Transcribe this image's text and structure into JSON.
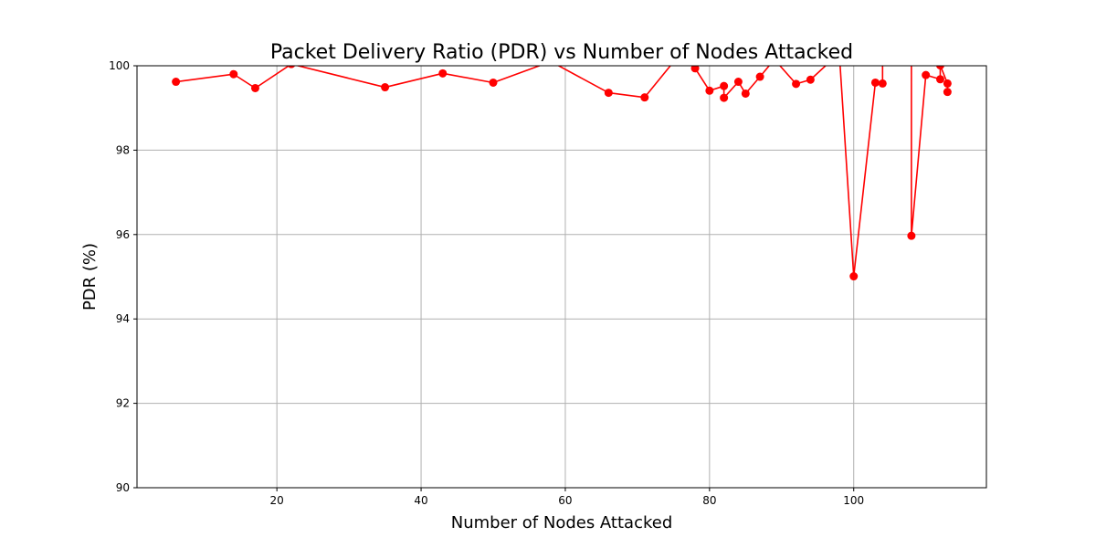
{
  "chart_data": {
    "type": "line",
    "title": "Packet Delivery Ratio (PDR) vs Number of Nodes Attacked",
    "xlabel": "Number of Nodes Attacked",
    "ylabel": "PDR (%)",
    "xlim": [
      0.6,
      118.4
    ],
    "ylim": [
      90,
      100
    ],
    "xticks": [
      20,
      40,
      60,
      80,
      100
    ],
    "xtick_labels": [
      "20",
      "40",
      "60",
      "80",
      "100"
    ],
    "yticks": [
      90,
      92,
      94,
      96,
      98,
      100
    ],
    "ytick_labels": [
      "90",
      "92",
      "94",
      "96",
      "98",
      "100"
    ],
    "grid": true,
    "legend": "none",
    "series": [
      {
        "color": "#ff0000",
        "marker": "circle",
        "x": [
          6,
          14,
          17,
          22,
          35,
          43,
          50,
          58,
          66,
          71,
          76,
          78,
          80,
          82,
          82,
          84,
          85,
          87,
          89,
          92,
          94,
          98,
          100,
          103,
          104,
          104,
          108,
          108,
          110,
          112,
          112,
          113,
          113
        ],
        "y": [
          99.62,
          99.8,
          99.47,
          100.04,
          99.49,
          99.82,
          99.6,
          100.1,
          99.36,
          99.25,
          100.3,
          99.94,
          99.41,
          99.52,
          99.24,
          99.62,
          99.34,
          99.74,
          100.15,
          99.57,
          99.67,
          100.3,
          95.01,
          99.6,
          99.58,
          100.3,
          100.3,
          95.97,
          99.78,
          99.68,
          100.01,
          99.58,
          99.38
        ]
      }
    ]
  }
}
